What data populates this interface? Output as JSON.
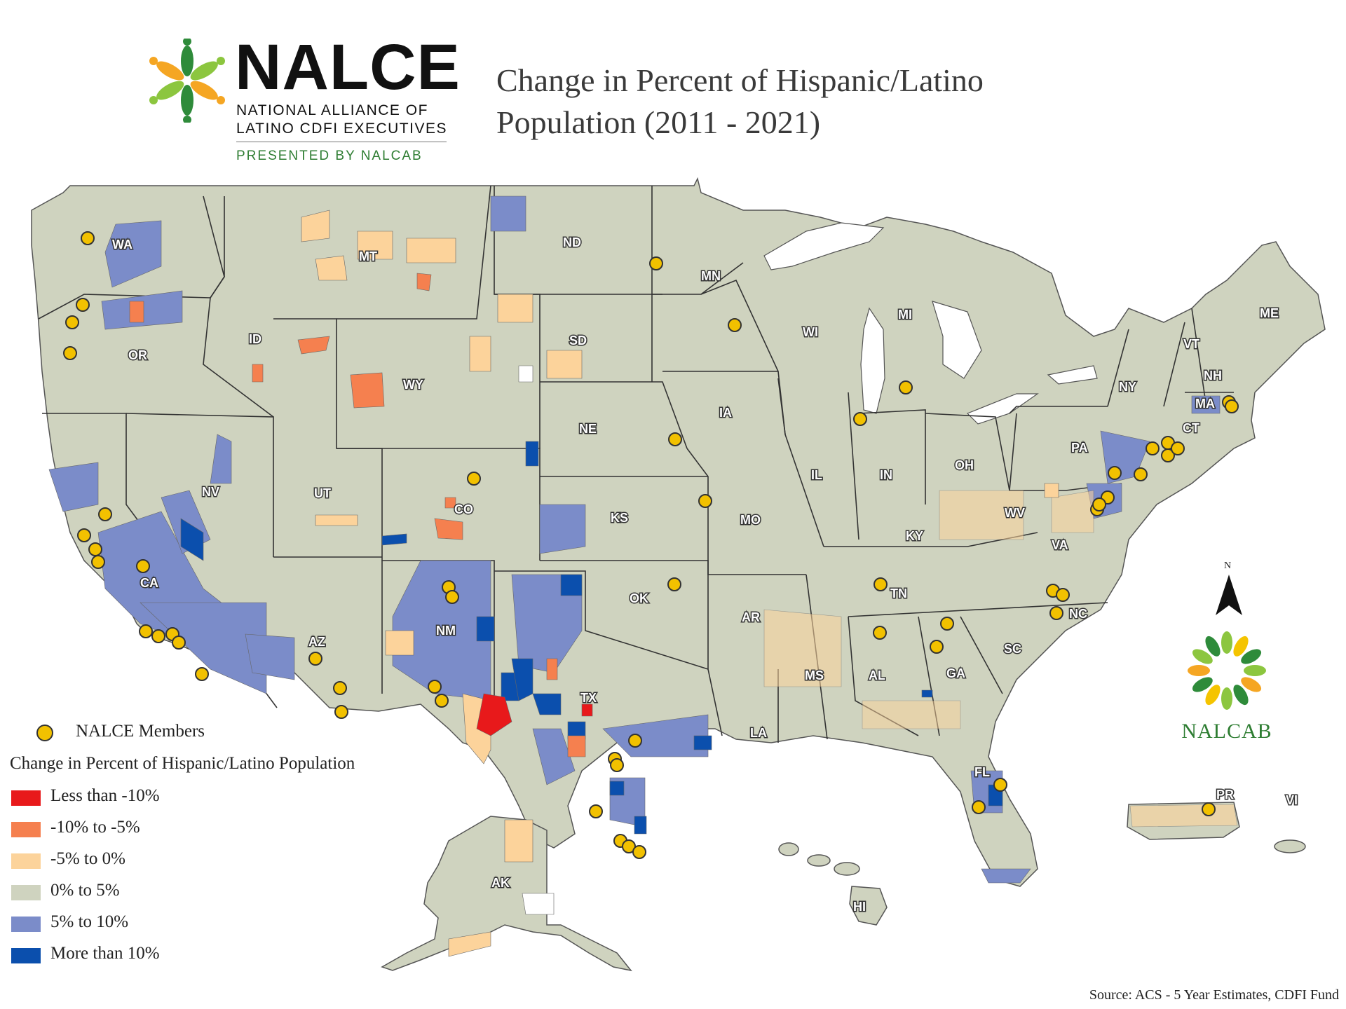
{
  "logo": {
    "name": "NALCE",
    "line1": "NATIONAL ALLIANCE OF",
    "line2": "LATINO CDFI EXECUTIVES",
    "presented": "PRESENTED BY NALCAB"
  },
  "title_line1": "Change in Percent of Hispanic/Latino",
  "title_line2": "Population (2011 - 2021)",
  "north_label": "N",
  "nalcab_logo": "NALCAB",
  "legend": {
    "member_label": "NALCE Members",
    "title": "Change in Percent of Hispanic/Latino Population",
    "classes": [
      {
        "label": "Less than -10%",
        "color": "#e8191b"
      },
      {
        "label": "-10% to -5%",
        "color": "#f5804f"
      },
      {
        "label": "-5% to 0%",
        "color": "#fcd39b"
      },
      {
        "label": "0% to 5%",
        "color": "#cfd3bf"
      },
      {
        "label": "5% to 10%",
        "color": "#7b8cc9"
      },
      {
        "label": "More than 10%",
        "color": "#0b4fad"
      }
    ]
  },
  "source": "Source: ACS - 5 Year Estimates, CDFI Fund",
  "colors": {
    "base": "#cfd3bf",
    "lake": "#ffffff",
    "border": "#333333",
    "member": "#f2c100"
  },
  "state_labels": [
    "WA",
    "OR",
    "CA",
    "NV",
    "ID",
    "MT",
    "WY",
    "UT",
    "AZ",
    "NM",
    "CO",
    "ND",
    "SD",
    "NE",
    "KS",
    "OK",
    "TX",
    "MN",
    "IA",
    "MO",
    "AR",
    "LA",
    "WI",
    "IL",
    "MI",
    "IN",
    "OH",
    "KY",
    "TN",
    "MS",
    "AL",
    "GA",
    "FL",
    "SC",
    "NC",
    "VA",
    "WV",
    "PA",
    "NY",
    "VT",
    "NH",
    "ME",
    "MA",
    "CT",
    "AK",
    "HI",
    "PR",
    "VI"
  ]
}
